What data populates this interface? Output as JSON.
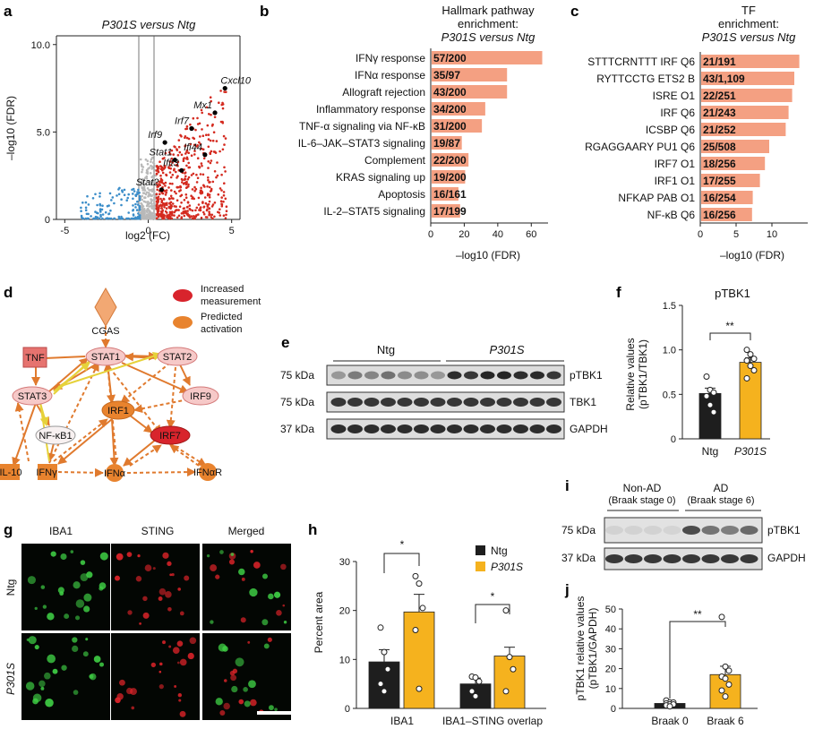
{
  "panel_labels": [
    "a",
    "b",
    "c",
    "d",
    "e",
    "f",
    "g",
    "h",
    "i",
    "j"
  ],
  "colors": {
    "salmon": "#f4a082",
    "up": "#d42a1f",
    "down": "#3b8dc9",
    "ns": "#b9b9b9",
    "orange": "#e8832e",
    "gold": "#f5b21e",
    "black": "#1e1e1e",
    "pink": "#f6c9c8"
  },
  "chart_data": [
    {
      "panel": "a",
      "type": "scatter",
      "title": "P301S versus Ntg",
      "xlabel": "log2 (FC)",
      "ylabel": "–log10 (FDR)",
      "xlim": [
        -5.5,
        5.5
      ],
      "ylim": [
        0,
        10.5
      ],
      "xticks": [
        "-5",
        "0",
        "5"
      ],
      "yticks": [
        "0",
        "5.0",
        "10.0"
      ],
      "labeled_points": [
        {
          "label": "Cxcl10",
          "x": 4.6,
          "y": 7.5
        },
        {
          "label": "Mx1",
          "x": 4.0,
          "y": 6.1
        },
        {
          "label": "Irf7",
          "x": 2.6,
          "y": 5.2
        },
        {
          "label": "Irf9",
          "x": 1.0,
          "y": 4.4
        },
        {
          "label": "Ifi44",
          "x": 3.4,
          "y": 3.7
        },
        {
          "label": "Stat1",
          "x": 1.6,
          "y": 3.4
        },
        {
          "label": "Ifit3",
          "x": 2.0,
          "y": 2.8
        },
        {
          "label": "Stat2",
          "x": 0.8,
          "y": 1.7
        }
      ]
    },
    {
      "panel": "b",
      "type": "bar",
      "orientation": "horizontal",
      "title": [
        "Hallmark pathway",
        "enrichment:",
        "P301S versus Ntg"
      ],
      "xlabel": "–log10 (FDR)",
      "xlim": [
        0,
        70
      ],
      "xticks": [
        "0",
        "20",
        "40",
        "60"
      ],
      "categories": [
        "IFNγ response",
        "IFNα response",
        "Allograft rejection",
        "Inflammatory response",
        "TNF-α signaling via NF-κB",
        "IL-6–JAK–STAT3 signaling",
        "Complement",
        "KRAS signaling up",
        "Apoptosis",
        "IL-2–STAT5 signaling"
      ],
      "values": [
        66,
        45,
        45,
        32,
        30,
        18,
        22,
        20,
        16,
        17
      ],
      "labels": [
        "57/200",
        "35/97",
        "43/200",
        "34/200",
        "31/200",
        "19/87",
        "22/200",
        "19/200",
        "16/161",
        "17/199"
      ]
    },
    {
      "panel": "c",
      "type": "bar",
      "orientation": "horizontal",
      "title": [
        "TF",
        "enrichment:",
        "P301S versus Ntg"
      ],
      "xlabel": "–log10 (FDR)",
      "xlim": [
        0,
        15
      ],
      "xticks": [
        "0",
        "5",
        "10"
      ],
      "categories": [
        "STTTCRNTTT IRF Q6",
        "RYTTCCTG ETS2 B",
        "ISRE O1",
        "IRF Q6",
        "ICSBP Q6",
        "RGAGGAARY PU1 Q6",
        "IRF7 O1",
        "IRF1 O1",
        "NFKAP PAB O1",
        "NF-κB Q6"
      ],
      "values": [
        13.7,
        13.0,
        12.7,
        12.2,
        11.8,
        9.5,
        8.9,
        8.2,
        7.2,
        7.1
      ],
      "labels": [
        "21/191",
        "43/1,109",
        "22/251",
        "21/243",
        "21/252",
        "25/508",
        "18/256",
        "17/255",
        "16/254",
        "16/256"
      ]
    },
    {
      "panel": "f",
      "type": "bar",
      "title": "pTBK1",
      "ylabel": [
        "Relative values",
        "(pTBK1/TBK1)"
      ],
      "categories": [
        "Ntg",
        "P301S"
      ],
      "values": [
        0.51,
        0.86
      ],
      "errors": [
        0.06,
        0.05
      ],
      "points": [
        [
          0.7,
          0.55,
          0.52,
          0.48,
          0.38,
          0.3
        ],
        [
          1.0,
          0.95,
          0.9,
          0.88,
          0.82,
          0.77,
          0.68
        ]
      ],
      "ylim": [
        0,
        1.5
      ],
      "yticks": [
        "0",
        "0.5",
        "1.0",
        "1.5"
      ],
      "significance": "**"
    },
    {
      "panel": "h",
      "type": "bar",
      "ylabel": "Percent area",
      "ylim": [
        0,
        30
      ],
      "yticks": [
        "0",
        "10",
        "20",
        "30"
      ],
      "categories": [
        "IBA1",
        "IBA1–STING overlap"
      ],
      "series": [
        {
          "name": "Ntg",
          "values": [
            9.5,
            5.0
          ],
          "errors": [
            2.5,
            1.2
          ],
          "points": [
            [
              16.5,
              11.5,
              8,
              5,
              3.5
            ],
            [
              6.5,
              6.3,
              5.5,
              3.5,
              2.5
            ]
          ]
        },
        {
          "name": "P301S",
          "values": [
            19.7,
            10.7
          ],
          "errors": [
            3.6,
            1.8
          ],
          "points": [
            [
              27,
              25.5,
              20.5,
              16,
              4
            ],
            [
              20,
              10.5,
              8,
              3.5
            ]
          ]
        }
      ],
      "significance": [
        "*",
        "*"
      ]
    },
    {
      "panel": "j",
      "type": "bar",
      "ylabel": [
        "pTBK1 relative values",
        "(pTBK1/GAPDH)"
      ],
      "ylim": [
        0,
        50
      ],
      "yticks": [
        "0",
        "10",
        "20",
        "30",
        "40",
        "50"
      ],
      "categories": [
        "Braak 0",
        "Braak 6"
      ],
      "values": [
        2.5,
        17.0
      ],
      "errors": [
        0.6,
        4.2
      ],
      "points": [
        [
          4,
          3,
          3,
          2.5,
          2,
          2,
          1.5,
          1
        ],
        [
          46,
          21,
          19,
          16,
          15,
          12,
          9,
          6
        ]
      ],
      "significance": "**"
    }
  ],
  "panel_d": {
    "legend": [
      "Increased",
      "measurement",
      "Predicted",
      "activation"
    ],
    "nodes": {
      "cgas": "CGAS",
      "tnf": "TNF",
      "stat1": "STAT1",
      "stat2": "STAT2",
      "stat3": "STAT3",
      "irf9": "IRF9",
      "irf1": "IRF1",
      "nfkb1": "NF-κB1",
      "irf7": "IRF7",
      "il10": "IL-10",
      "ifng": "IFNγ",
      "ifna": "IFNα",
      "ifnar": "IFNαR"
    }
  },
  "panel_e": {
    "groups": [
      "Ntg",
      "P301S"
    ],
    "mw": [
      "75 kDa",
      "75 kDa",
      "37 kDa"
    ],
    "bands": [
      "pTBK1",
      "TBK1",
      "GAPDH"
    ]
  },
  "panel_g": {
    "columns": [
      "IBA1",
      "STING",
      "Merged"
    ],
    "rows": [
      "Ntg",
      "P301S"
    ]
  },
  "panel_i": {
    "groups": [
      "Non-AD",
      "(Braak stage 0)",
      "AD",
      "(Braak stage 6)"
    ],
    "mw": [
      "75 kDa",
      "37 kDa"
    ],
    "bands": [
      "pTBK1",
      "GAPDH"
    ]
  }
}
